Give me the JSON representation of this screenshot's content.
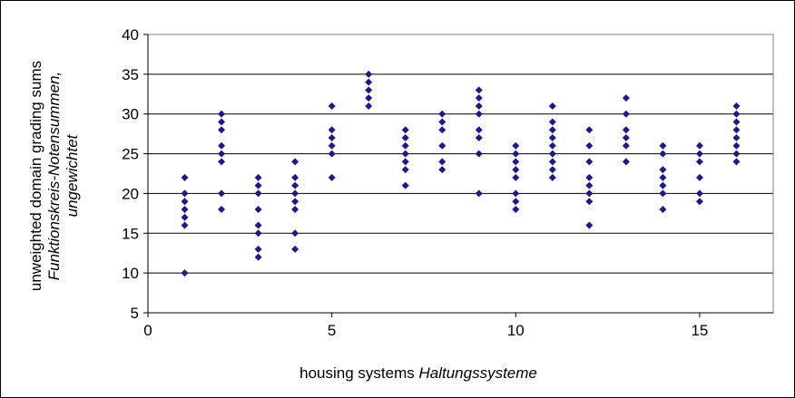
{
  "chart_data": {
    "type": "scatter",
    "title": "",
    "xlabel": {
      "en": "housing systems",
      "de": "Haltungssysteme"
    },
    "ylabel": {
      "en": "unweighted domain grading sums",
      "de_line1": "Funktionskreis-Notensummen,",
      "de_line2": "ungewichtet"
    },
    "xlim": [
      0,
      17
    ],
    "ylim": [
      5,
      40
    ],
    "x_ticks": [
      0,
      5,
      10,
      15
    ],
    "y_ticks": [
      5,
      10,
      15,
      20,
      25,
      30,
      35,
      40
    ],
    "grid": "horizontal",
    "legend": "none",
    "marker": "diamond",
    "color": "#1a1a8c",
    "points": [
      [
        1,
        10
      ],
      [
        1,
        16
      ],
      [
        1,
        17
      ],
      [
        1,
        18
      ],
      [
        1,
        19
      ],
      [
        1,
        20
      ],
      [
        1,
        22
      ],
      [
        2,
        18
      ],
      [
        2,
        20
      ],
      [
        2,
        24
      ],
      [
        2,
        25
      ],
      [
        2,
        26
      ],
      [
        2,
        28
      ],
      [
        2,
        29
      ],
      [
        2,
        30
      ],
      [
        3,
        12
      ],
      [
        3,
        13
      ],
      [
        3,
        15
      ],
      [
        3,
        16
      ],
      [
        3,
        18
      ],
      [
        3,
        20
      ],
      [
        3,
        21
      ],
      [
        3,
        22
      ],
      [
        4,
        13
      ],
      [
        4,
        15
      ],
      [
        4,
        18
      ],
      [
        4,
        19
      ],
      [
        4,
        20
      ],
      [
        4,
        21
      ],
      [
        4,
        22
      ],
      [
        4,
        24
      ],
      [
        5,
        22
      ],
      [
        5,
        25
      ],
      [
        5,
        26
      ],
      [
        5,
        27
      ],
      [
        5,
        28
      ],
      [
        5,
        31
      ],
      [
        6,
        31
      ],
      [
        6,
        32
      ],
      [
        6,
        33
      ],
      [
        6,
        34
      ],
      [
        6,
        35
      ],
      [
        7,
        21
      ],
      [
        7,
        23
      ],
      [
        7,
        24
      ],
      [
        7,
        25
      ],
      [
        7,
        26
      ],
      [
        7,
        27
      ],
      [
        7,
        28
      ],
      [
        8,
        23
      ],
      [
        8,
        24
      ],
      [
        8,
        26
      ],
      [
        8,
        28
      ],
      [
        8,
        29
      ],
      [
        8,
        30
      ],
      [
        9,
        20
      ],
      [
        9,
        25
      ],
      [
        9,
        27
      ],
      [
        9,
        28
      ],
      [
        9,
        30
      ],
      [
        9,
        31
      ],
      [
        9,
        32
      ],
      [
        9,
        33
      ],
      [
        10,
        18
      ],
      [
        10,
        19
      ],
      [
        10,
        20
      ],
      [
        10,
        22
      ],
      [
        10,
        23
      ],
      [
        10,
        24
      ],
      [
        10,
        25
      ],
      [
        10,
        26
      ],
      [
        11,
        22
      ],
      [
        11,
        23
      ],
      [
        11,
        24
      ],
      [
        11,
        25
      ],
      [
        11,
        26
      ],
      [
        11,
        27
      ],
      [
        11,
        28
      ],
      [
        11,
        29
      ],
      [
        11,
        31
      ],
      [
        12,
        16
      ],
      [
        12,
        19
      ],
      [
        12,
        20
      ],
      [
        12,
        21
      ],
      [
        12,
        22
      ],
      [
        12,
        24
      ],
      [
        12,
        26
      ],
      [
        12,
        28
      ],
      [
        13,
        24
      ],
      [
        13,
        26
      ],
      [
        13,
        27
      ],
      [
        13,
        28
      ],
      [
        13,
        30
      ],
      [
        13,
        32
      ],
      [
        14,
        18
      ],
      [
        14,
        20
      ],
      [
        14,
        21
      ],
      [
        14,
        22
      ],
      [
        14,
        23
      ],
      [
        14,
        25
      ],
      [
        14,
        26
      ],
      [
        15,
        19
      ],
      [
        15,
        20
      ],
      [
        15,
        22
      ],
      [
        15,
        24
      ],
      [
        15,
        25
      ],
      [
        15,
        26
      ],
      [
        16,
        24
      ],
      [
        16,
        25
      ],
      [
        16,
        26
      ],
      [
        16,
        27
      ],
      [
        16,
        28
      ],
      [
        16,
        29
      ],
      [
        16,
        30
      ],
      [
        16,
        31
      ]
    ]
  }
}
